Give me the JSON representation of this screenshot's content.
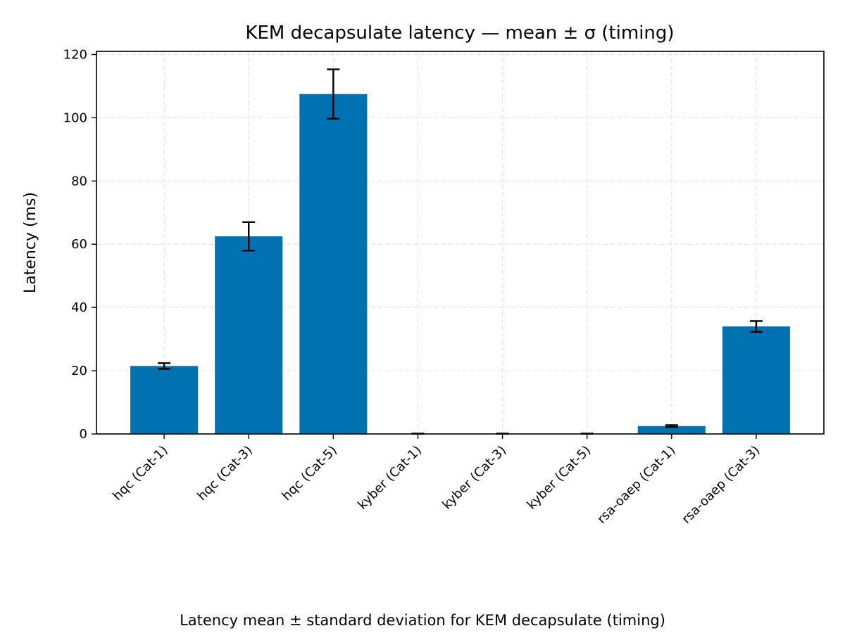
{
  "chart_data": {
    "type": "bar",
    "title": "KEM decapsulate latency — mean ± σ (timing)",
    "xlabel": "",
    "ylabel": "Latency (ms)",
    "caption": "Latency mean ± standard deviation for KEM decapsulate (timing)",
    "categories": [
      "hqc (Cat-1)",
      "hqc (Cat-3)",
      "hqc (Cat-5)",
      "kyber (Cat-1)",
      "kyber (Cat-3)",
      "kyber (Cat-5)",
      "rsa-oaep (Cat-1)",
      "rsa-oaep (Cat-3)"
    ],
    "values": [
      21.5,
      62.5,
      107.5,
      0.1,
      0.1,
      0.1,
      2.5,
      34.0
    ],
    "errors": [
      0.9,
      4.5,
      7.8,
      0.02,
      0.02,
      0.02,
      0.3,
      1.7
    ],
    "ylim": [
      0,
      121
    ],
    "yticks": [
      0,
      20,
      40,
      60,
      80,
      100,
      120
    ],
    "grid": true,
    "bar_color": "#0072B2",
    "error_color": "#000000"
  }
}
